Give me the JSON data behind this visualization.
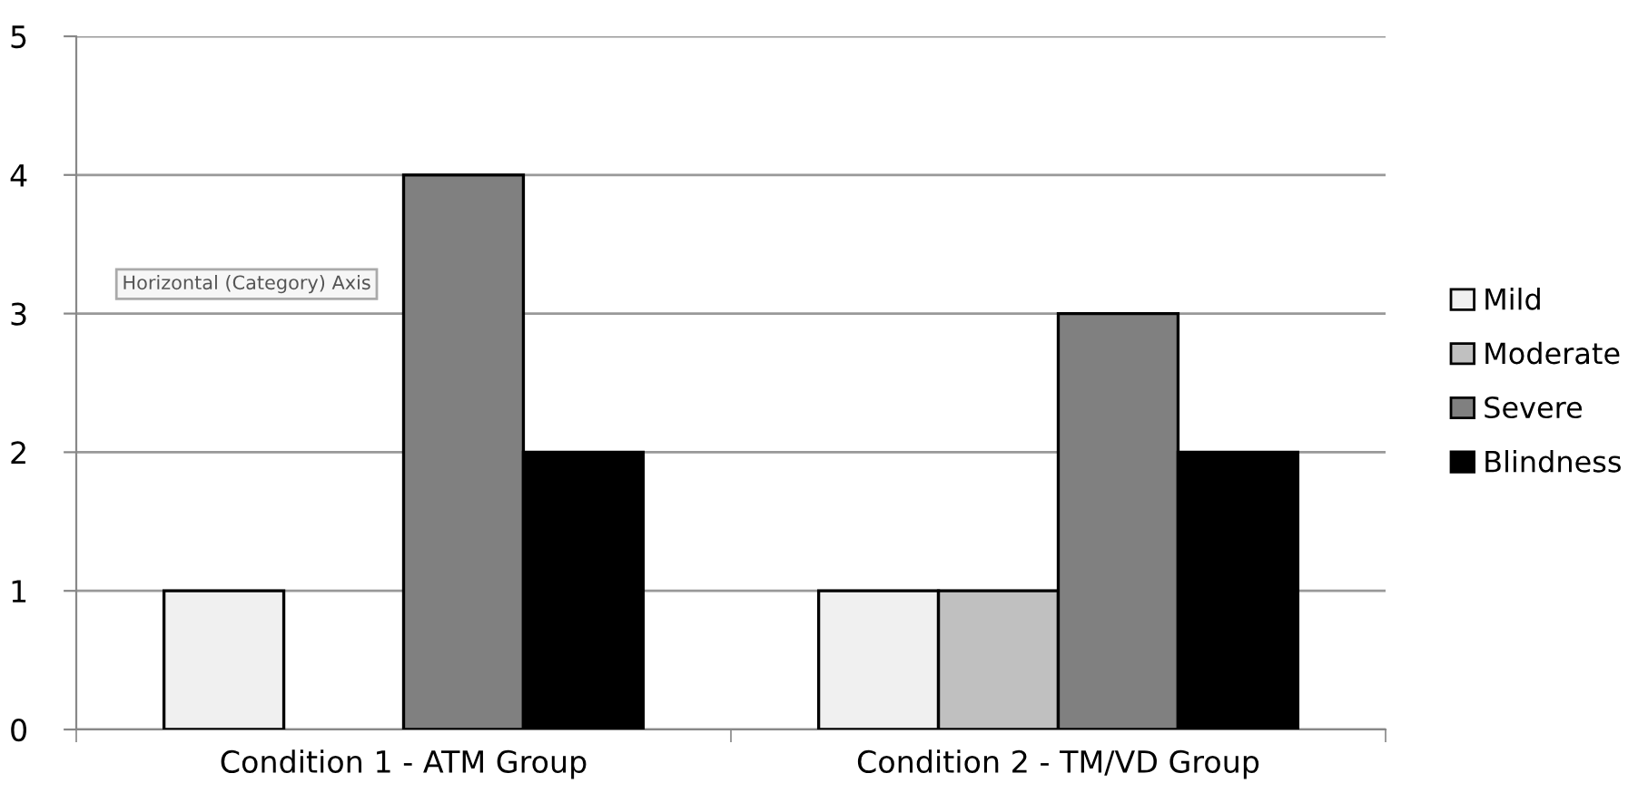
{
  "chart_data": {
    "type": "bar",
    "categories": [
      "Condition 1 - ATM Group",
      "Condition 2 - TM/VD Group"
    ],
    "series": [
      {
        "name": "Mild",
        "color": "#f0f0f0",
        "values": [
          1,
          1
        ]
      },
      {
        "name": "Moderate",
        "color": "#c0c0c0",
        "values": [
          null,
          1
        ]
      },
      {
        "name": "Severe",
        "color": "#808080",
        "values": [
          4,
          3
        ]
      },
      {
        "name": "Blindness",
        "color": "#000000",
        "values": [
          2,
          2
        ]
      }
    ],
    "ylim": [
      0,
      5
    ],
    "yticks": [
      0,
      1,
      2,
      3,
      4,
      5
    ],
    "grid": "y",
    "legend": "right",
    "annotations": [
      "Horizontal (Category) Axis"
    ]
  }
}
